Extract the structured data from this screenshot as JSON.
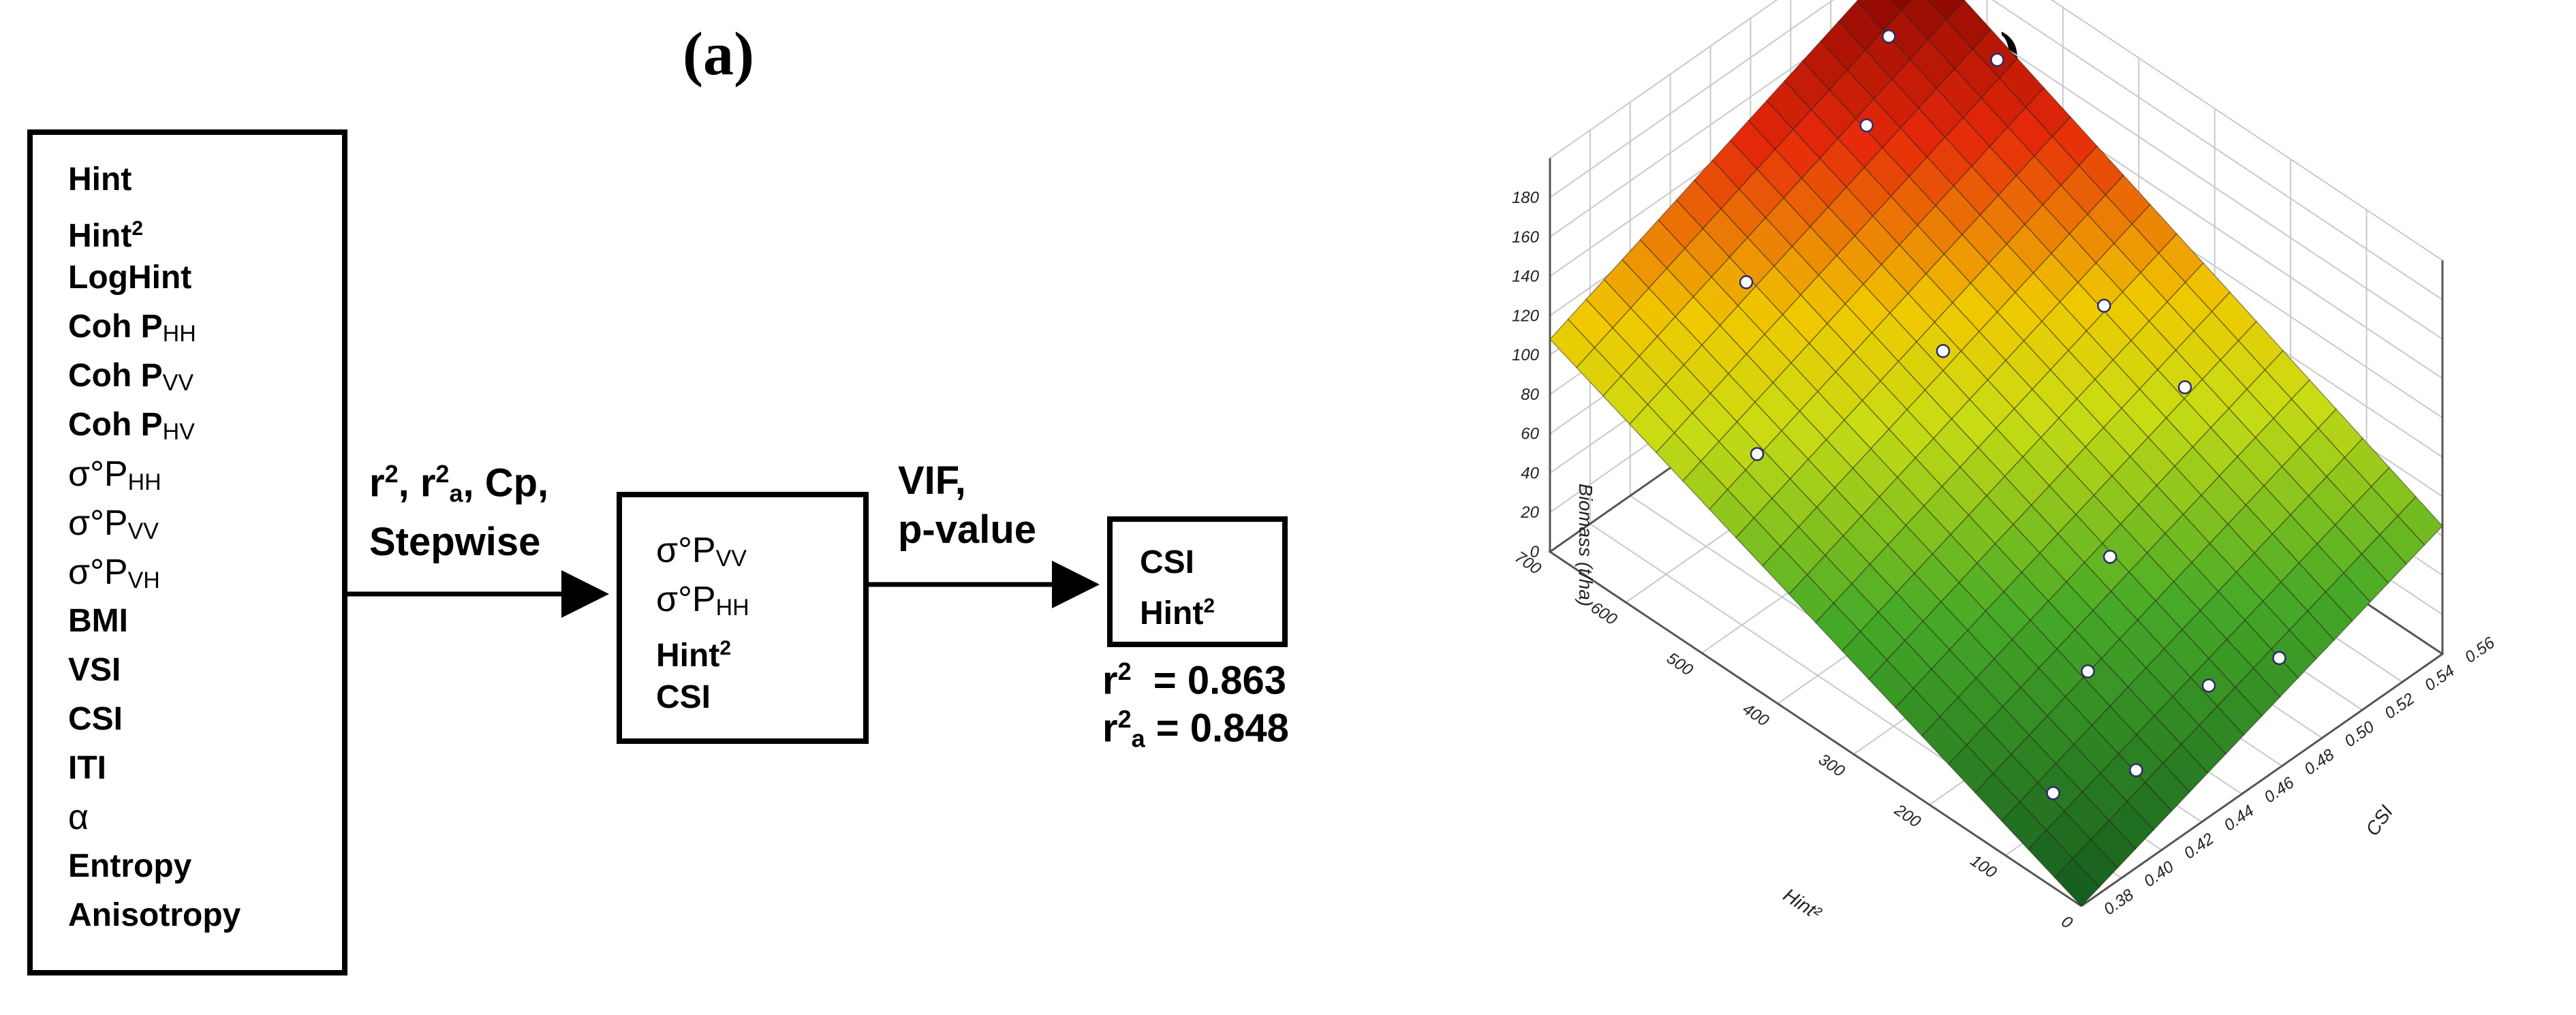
{
  "panels": {
    "a": "(a)",
    "b": "(b)"
  },
  "variables": [
    {
      "base": "Hint"
    },
    {
      "base": "Hint",
      "sup": "2"
    },
    {
      "base": "LogHint"
    },
    {
      "base": "Coh P",
      "sub": "HH"
    },
    {
      "base": "Coh P",
      "sub": "VV"
    },
    {
      "base": "Coh P",
      "sub": "HV"
    },
    {
      "base": "σ°P",
      "sub": "HH",
      "sigma": true
    },
    {
      "base": "σ°P",
      "sub": "VV",
      "sigma": true
    },
    {
      "base": "σ°P",
      "sub": "VH",
      "sigma": true
    },
    {
      "base": "BMI"
    },
    {
      "base": "VSI"
    },
    {
      "base": "CSI"
    },
    {
      "base": "ITI"
    },
    {
      "base": "α",
      "sigma": true
    },
    {
      "base": "Entropy"
    },
    {
      "base": "Anisotropy"
    }
  ],
  "step1": {
    "line1": "r², r²a, Cp,",
    "line2": "Stepwise"
  },
  "selected": [
    {
      "base": "σ°P",
      "sub": "VV",
      "sigma": true
    },
    {
      "base": "σ°P",
      "sub": "HH",
      "sigma": true
    },
    {
      "base": "Hint",
      "sup": "2"
    },
    {
      "base": "CSI"
    }
  ],
  "step2": {
    "line1": "VIF,",
    "line2": "p-value"
  },
  "final": [
    {
      "base": "CSI"
    },
    {
      "base": "Hint",
      "sup": "2"
    }
  ],
  "stats": {
    "r2": "r² = 0.863",
    "r2a": "r²a = 0.848"
  },
  "chart_data": {
    "type": "surface3d",
    "z_label": "Biomass (t/ha)",
    "x_label": "Hint²",
    "y_label": "CSI",
    "z_ticks": [
      "0",
      "20",
      "40",
      "60",
      "80",
      "100",
      "120",
      "140",
      "160",
      "180"
    ],
    "x_ticks": [
      "0",
      "100",
      "200",
      "300",
      "400",
      "500",
      "600",
      "700"
    ],
    "y_ticks": [
      "0.38",
      "0.40",
      "0.42",
      "0.44",
      "0.46",
      "0.48",
      "0.50",
      "0.52",
      "0.54",
      "0.56"
    ],
    "xlim": [
      0,
      700
    ],
    "ylim": [
      0.38,
      0.56
    ],
    "zlim": [
      0,
      180
    ],
    "surface_corners": {
      "x0y0": 0,
      "x1y0": 108,
      "x0y1": 65,
      "x1y1": 182
    },
    "points": [
      {
        "x": 650,
        "y": 0.53,
        "z": 168
      },
      {
        "x": 600,
        "y": 0.5,
        "z": 157
      },
      {
        "x": 560,
        "y": 0.55,
        "z": 165
      },
      {
        "x": 600,
        "y": 0.44,
        "z": 120
      },
      {
        "x": 480,
        "y": 0.4,
        "z": 92
      },
      {
        "x": 420,
        "y": 0.47,
        "z": 110
      },
      {
        "x": 340,
        "y": 0.52,
        "z": 118
      },
      {
        "x": 260,
        "y": 0.53,
        "z": 90
      },
      {
        "x": 200,
        "y": 0.47,
        "z": 62
      },
      {
        "x": 150,
        "y": 0.44,
        "z": 38
      },
      {
        "x": 90,
        "y": 0.4,
        "z": 20
      },
      {
        "x": 70,
        "y": 0.47,
        "z": 30
      },
      {
        "x": 60,
        "y": 0.43,
        "z": 18
      },
      {
        "x": 30,
        "y": 0.49,
        "z": 40
      }
    ],
    "colors": {
      "high": "#8b0a05",
      "mid": "#e8e000",
      "low": "#1f7a2a"
    }
  }
}
